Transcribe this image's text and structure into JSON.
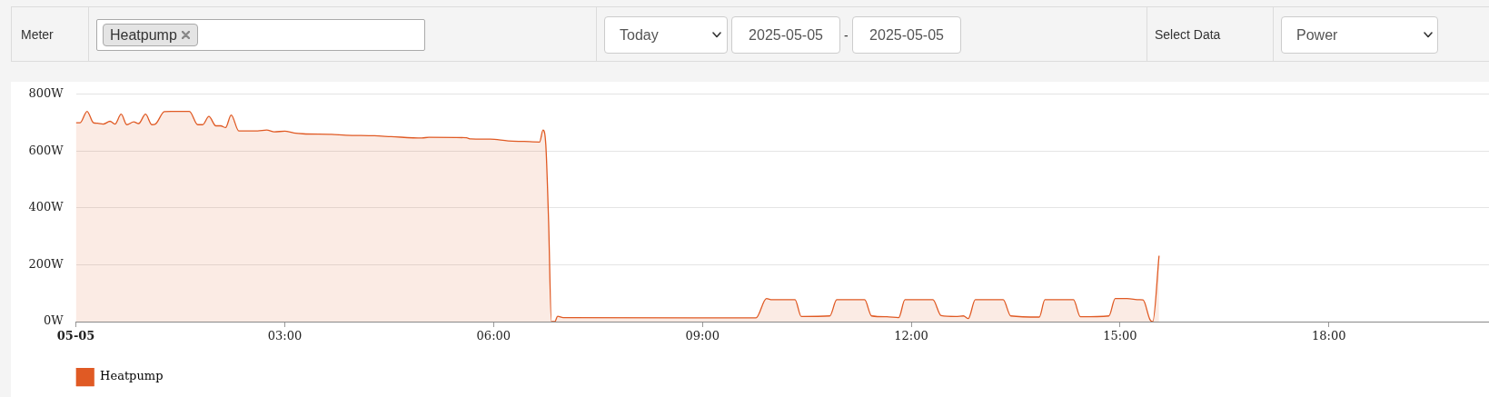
{
  "chart_data": {
    "type": "area",
    "annotations": [
      "Meter",
      "Heatpump",
      "Today",
      "2025-05-05",
      "-",
      "2025-05-05",
      "Select Data",
      "Power"
    ],
    "x": [
      0,
      0.06,
      0.16,
      0.25,
      0.31,
      0.39,
      0.49,
      0.56,
      0.65,
      0.73,
      0.83,
      0.9,
      1.0,
      1.09,
      1.14,
      1.27,
      1.37,
      1.63,
      1.75,
      1.82,
      1.91,
      2.01,
      2.08,
      2.15,
      2.23,
      2.34,
      2.61,
      2.74,
      2.85,
      3.0,
      3.13,
      3.26,
      3.67,
      3.88,
      4.29,
      4.53,
      4.97,
      5.07,
      5.61,
      5.67,
      5.95,
      6.21,
      6.44,
      6.66,
      6.71,
      6.75,
      6.79,
      6.83,
      6.88,
      6.92,
      7.0,
      9.77,
      9.92,
      10.0,
      10.33,
      10.42,
      10.83,
      10.93,
      11.33,
      11.43,
      11.65,
      11.82,
      11.91,
      12.31,
      12.43,
      12.64,
      12.75,
      12.82,
      12.92,
      13.32,
      13.43,
      13.84,
      13.92,
      14.33,
      14.43,
      14.84,
      14.93,
      15.1,
      15.28,
      15.33,
      15.43,
      15.47,
      15.56
    ],
    "series": [
      {
        "name": "Heatpump",
        "color": "#e05a24",
        "values": [
          700,
          700,
          740,
          700,
          698,
          695,
          705,
          695,
          730,
          693,
          703,
          697,
          730,
          693,
          695,
          739,
          740,
          740,
          693,
          693,
          722,
          689,
          689,
          683,
          727,
          671,
          671,
          674,
          668,
          670,
          664,
          661,
          659,
          656,
          654,
          651,
          646,
          649,
          647,
          643,
          642,
          636,
          634,
          632,
          674,
          623,
          353,
          0,
          0,
          19,
          14,
          13,
          81,
          77,
          77,
          18,
          20,
          77,
          77,
          20,
          17,
          14,
          77,
          77,
          21,
          18,
          20,
          11,
          77,
          77,
          20,
          16,
          77,
          77,
          17,
          20,
          81,
          81,
          77,
          76,
          7,
          0,
          232
        ]
      }
    ],
    "xlim": [
      0,
      20.3
    ],
    "xticks": [
      {
        "value": 0,
        "label": "05-05"
      },
      {
        "value": 3,
        "label": "03:00"
      },
      {
        "value": 6,
        "label": "06:00"
      },
      {
        "value": 9,
        "label": "09:00"
      },
      {
        "value": 12,
        "label": "12:00"
      },
      {
        "value": 15,
        "label": "15:00"
      },
      {
        "value": 18,
        "label": "18:00"
      }
    ],
    "ylim": [
      0,
      800
    ],
    "yticks": [
      {
        "value": 0,
        "label": "0W"
      },
      {
        "value": 200,
        "label": "200W"
      },
      {
        "value": 400,
        "label": "400W"
      },
      {
        "value": 600,
        "label": "600W"
      },
      {
        "value": 800,
        "label": "800W"
      }
    ],
    "grid": "y",
    "legend": "bottom left",
    "marker": "none"
  }
}
